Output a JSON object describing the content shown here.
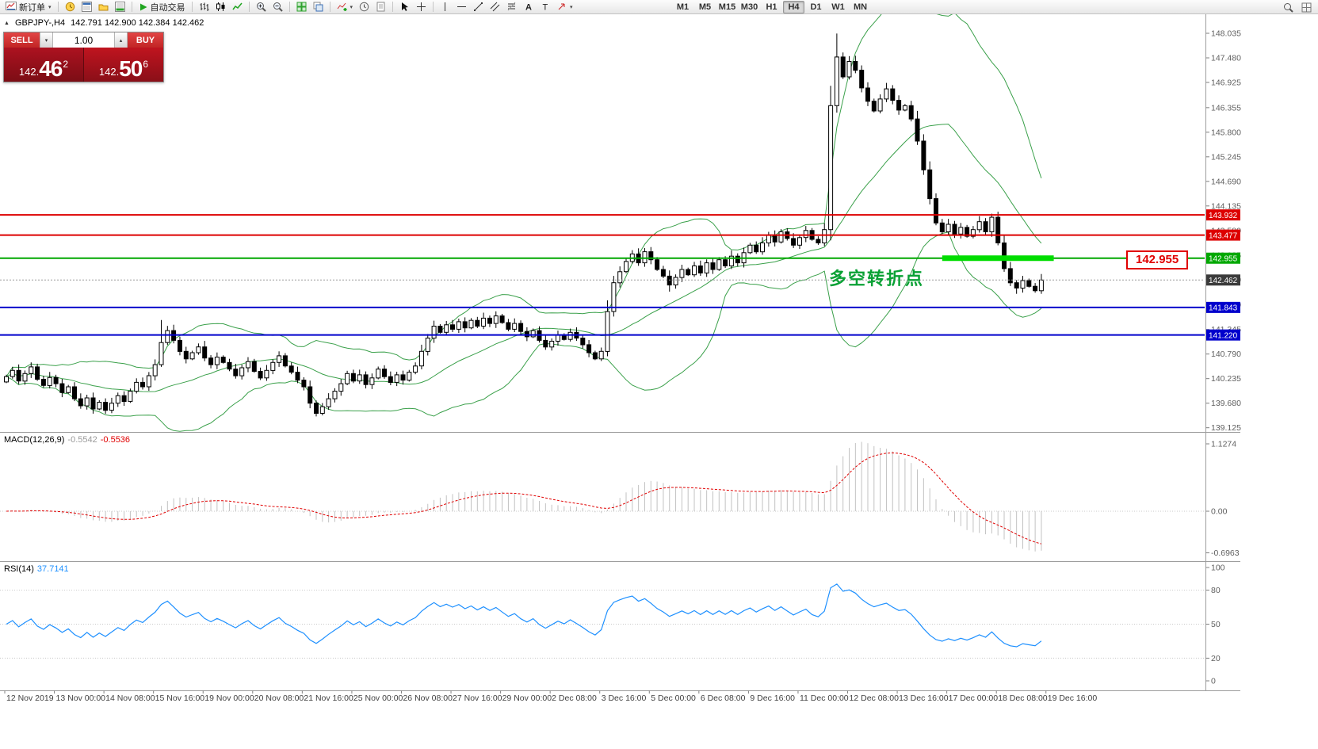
{
  "toolbar": {
    "new_order": "新订单",
    "autotrading": "自动交易",
    "timeframes": [
      "M1",
      "M5",
      "M15",
      "M30",
      "H1",
      "H4",
      "D1",
      "W1",
      "MN"
    ],
    "active_timeframe": "H4"
  },
  "one_click": {
    "sell_label": "SELL",
    "buy_label": "BUY",
    "volume": "1.00",
    "bid": {
      "int": "142.",
      "pips": "46",
      "frac": "2"
    },
    "ask": {
      "int": "142.",
      "pips": "50",
      "frac": "6"
    }
  },
  "chart": {
    "symbol": "GBPJPY-,H4",
    "ohlc": "142.791 142.900 142.384 142.462"
  },
  "indicators": {
    "macd": {
      "name": "MACD(12,26,9)",
      "value_main": "-0.5542",
      "value_signal": "-0.5536",
      "axis": [
        "1.1274",
        "0.00",
        "-0.6963"
      ],
      "params": {
        "fast": 12,
        "slow": 26,
        "signal": 9
      }
    },
    "rsi": {
      "name": "RSI(14)",
      "value": "37.7141",
      "axis": [
        100,
        80,
        50,
        20,
        0
      ],
      "levels": [
        80,
        50,
        20
      ],
      "period": 14
    }
  },
  "annotation": {
    "text": "多空转折点",
    "color": "#0aa135"
  },
  "price_box": {
    "text": "142.955"
  },
  "chart_data": {
    "type": "candlestick",
    "symbol": "GBPJPY",
    "timeframe": "H4",
    "current_bar": {
      "open": 142.791,
      "high": 142.9,
      "low": 142.384,
      "close": 142.462
    },
    "ylim": [
      139.031,
      148.465
    ],
    "price_axis_labels": [
      "148.035",
      "147.480",
      "146.925",
      "146.355",
      "145.800",
      "145.245",
      "144.690",
      "144.135",
      "143.580",
      "143.025",
      "142.470",
      "141.900",
      "141.345",
      "140.790",
      "140.235",
      "139.680",
      "139.125"
    ],
    "time_axis_labels": [
      "12 Nov 2019",
      "13 Nov 00:00",
      "14 Nov 08:00",
      "15 Nov 16:00",
      "19 Nov 00:00",
      "20 Nov 08:00",
      "21 Nov 16:00",
      "25 Nov 00:00",
      "26 Nov 08:00",
      "27 Nov 16:00",
      "29 Nov 00:00",
      "2 Dec 08:00",
      "3 Dec 16:00",
      "5 Dec 00:00",
      "6 Dec 08:00",
      "9 Dec 16:00",
      "11 Dec 00:00",
      "12 Dec 08:00",
      "13 Dec 16:00",
      "17 Dec 00:00",
      "18 Dec 08:00",
      "19 Dec 16:00"
    ],
    "closes": [
      140.28,
      140.42,
      140.18,
      140.35,
      140.5,
      140.22,
      140.08,
      140.26,
      140.12,
      139.92,
      140.05,
      139.78,
      139.62,
      139.8,
      139.55,
      139.7,
      139.52,
      139.68,
      139.85,
      139.72,
      139.95,
      140.15,
      140.05,
      140.3,
      140.55,
      141.05,
      141.32,
      141.1,
      140.85,
      140.68,
      140.82,
      140.95,
      140.7,
      140.55,
      140.72,
      140.6,
      140.45,
      140.3,
      140.48,
      140.62,
      140.4,
      140.25,
      140.42,
      140.6,
      140.75,
      140.52,
      140.38,
      140.2,
      140.05,
      139.68,
      139.45,
      139.6,
      139.78,
      139.95,
      140.12,
      140.35,
      140.18,
      140.32,
      140.1,
      140.25,
      140.45,
      140.28,
      140.15,
      140.32,
      140.2,
      140.38,
      140.52,
      140.85,
      141.15,
      141.42,
      141.28,
      141.45,
      141.35,
      141.52,
      141.38,
      141.55,
      141.42,
      141.6,
      141.48,
      141.65,
      141.5,
      141.35,
      141.48,
      141.3,
      141.18,
      141.32,
      141.1,
      140.95,
      141.08,
      141.22,
      141.12,
      141.28,
      141.15,
      141.0,
      140.82,
      140.68,
      140.85,
      141.75,
      142.4,
      142.65,
      142.88,
      143.05,
      142.85,
      143.1,
      142.92,
      142.7,
      142.55,
      142.35,
      142.52,
      142.7,
      142.58,
      142.78,
      142.62,
      142.85,
      142.7,
      142.92,
      142.78,
      143.0,
      142.85,
      143.08,
      143.25,
      143.1,
      143.3,
      143.48,
      143.32,
      143.55,
      143.4,
      143.25,
      143.42,
      143.58,
      143.38,
      143.3,
      143.6,
      146.4,
      147.5,
      147.05,
      147.4,
      147.2,
      146.8,
      146.5,
      146.28,
      146.55,
      146.78,
      146.52,
      146.3,
      146.4,
      146.1,
      145.6,
      144.95,
      144.3,
      143.75,
      143.55,
      143.72,
      143.5,
      143.65,
      143.45,
      143.6,
      143.78,
      143.55,
      143.88,
      143.3,
      142.72,
      142.4,
      142.28,
      142.45,
      142.32,
      142.22,
      142.462
    ],
    "wick_overrides": {
      "high": {
        "25": 141.56,
        "134": 148.03,
        "159": 143.96
      },
      "low": {
        "16": 139.44,
        "50": 139.38,
        "107": 142.2,
        "163": 142.15
      }
    },
    "bollinger": {
      "period": 20,
      "deviations": 2,
      "color": "#3aa04a"
    },
    "horizontal_lines": [
      {
        "price": 143.932,
        "color": "#dd0000",
        "label": "143.932"
      },
      {
        "price": 143.477,
        "color": "#dd0000",
        "label": "143.477"
      },
      {
        "price": 142.955,
        "color": "#00a800",
        "label": "142.955"
      },
      {
        "price": 141.843,
        "color": "#0000cc",
        "label": "141.843"
      },
      {
        "price": 141.22,
        "color": "#0000cc",
        "label": "141.220"
      }
    ],
    "current_price": {
      "value": 142.462,
      "label": "142.462",
      "tag_color": "#3b3b3b"
    },
    "highlight_segment": {
      "price": 142.955,
      "from_index": 151,
      "to_index": 169,
      "color": "#00dd00"
    }
  }
}
